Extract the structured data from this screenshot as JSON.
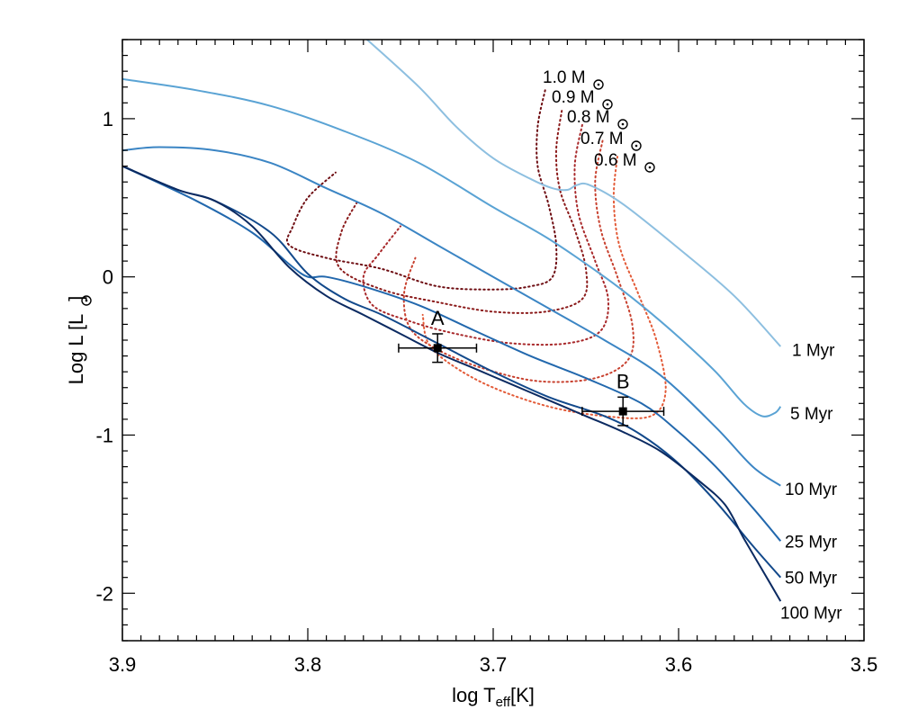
{
  "chart_data": {
    "type": "line",
    "title": "",
    "xlabel": {
      "main": "log T",
      "sub": "eff",
      "suffix": "[K]"
    },
    "ylabel": {
      "main": "Log L [L",
      "suffix": "]",
      "symbol": "sun"
    },
    "xlim": [
      3.9,
      3.5
    ],
    "ylim": [
      -2.3,
      1.5
    ],
    "xticks": [
      {
        "value": 3.9,
        "label": "3.9"
      },
      {
        "value": 3.8,
        "label": "3.8"
      },
      {
        "value": 3.7,
        "label": "3.7"
      },
      {
        "value": 3.6,
        "label": "3.6"
      },
      {
        "value": 3.5,
        "label": "3.5"
      }
    ],
    "yticks": [
      {
        "value": 1,
        "label": "1"
      },
      {
        "value": 0,
        "label": "0"
      },
      {
        "value": -1,
        "label": "-1"
      },
      {
        "value": -2,
        "label": "-2"
      }
    ],
    "isochrones": [
      {
        "name": "1 Myr",
        "color": "#8dbfe0",
        "label": "1 Myr",
        "x": [
          3.768,
          3.74,
          3.72,
          3.7,
          3.68,
          3.668,
          3.66,
          3.655,
          3.648,
          3.63,
          3.6,
          3.57,
          3.545
        ],
        "y": [
          1.5,
          1.2,
          0.95,
          0.75,
          0.62,
          0.56,
          0.55,
          0.58,
          0.58,
          0.46,
          0.18,
          -0.12,
          -0.44
        ]
      },
      {
        "name": "5 Myr",
        "color": "#5aa3d4",
        "label": "5 Myr",
        "x": [
          3.9,
          3.86,
          3.82,
          3.78,
          3.74,
          3.7,
          3.67,
          3.64,
          3.62,
          3.6,
          3.58,
          3.565,
          3.555,
          3.548,
          3.545
        ],
        "y": [
          1.25,
          1.18,
          1.08,
          0.92,
          0.72,
          0.44,
          0.24,
          0.0,
          -0.18,
          -0.38,
          -0.6,
          -0.8,
          -0.88,
          -0.86,
          -0.82
        ]
      },
      {
        "name": "10 Myr",
        "color": "#3b85c4",
        "label": "10 Myr",
        "x": [
          3.9,
          3.88,
          3.85,
          3.82,
          3.79,
          3.76,
          3.73,
          3.7,
          3.67,
          3.64,
          3.61,
          3.58,
          3.56,
          3.545
        ],
        "y": [
          0.8,
          0.82,
          0.8,
          0.72,
          0.56,
          0.4,
          0.2,
          0.0,
          -0.2,
          -0.4,
          -0.62,
          -0.95,
          -1.2,
          -1.32
        ]
      },
      {
        "name": "25 Myr",
        "color": "#2268ad",
        "label": "25 Myr",
        "x": [
          3.9,
          3.86,
          3.83,
          3.81,
          3.8,
          3.79,
          3.77,
          3.74,
          3.71,
          3.68,
          3.65,
          3.62,
          3.6,
          3.58,
          3.56,
          3.545
        ],
        "y": [
          0.7,
          0.48,
          0.28,
          0.08,
          0.0,
          0.0,
          -0.06,
          -0.18,
          -0.34,
          -0.5,
          -0.64,
          -0.8,
          -0.98,
          -1.2,
          -1.46,
          -1.67
        ]
      },
      {
        "name": "50 Myr",
        "color": "#12498b",
        "label": "50 Myr",
        "x": [
          3.9,
          3.87,
          3.85,
          3.82,
          3.8,
          3.78,
          3.76,
          3.73,
          3.7,
          3.67,
          3.64,
          3.62,
          3.6,
          3.58,
          3.56,
          3.545
        ],
        "y": [
          0.7,
          0.55,
          0.48,
          0.28,
          0.02,
          -0.14,
          -0.24,
          -0.42,
          -0.6,
          -0.76,
          -0.88,
          -1.0,
          -1.18,
          -1.42,
          -1.7,
          -1.9
        ]
      },
      {
        "name": "100 Myr",
        "color": "#0b2a61",
        "label": "100 Myr",
        "x": [
          3.9,
          3.87,
          3.85,
          3.83,
          3.81,
          3.79,
          3.77,
          3.75,
          3.73,
          3.71,
          3.69,
          3.67,
          3.65,
          3.63,
          3.61,
          3.59,
          3.575,
          3.565,
          3.555,
          3.545
        ],
        "y": [
          0.7,
          0.55,
          0.48,
          0.32,
          0.06,
          -0.12,
          -0.24,
          -0.36,
          -0.48,
          -0.58,
          -0.68,
          -0.78,
          -0.88,
          -0.98,
          -1.1,
          -1.28,
          -1.44,
          -1.65,
          -1.85,
          -2.05
        ]
      }
    ],
    "tracks": [
      {
        "name": "1.0 Msun",
        "mass": "1.0",
        "color": "#6e0d12",
        "x": [
          3.672,
          3.676,
          3.676,
          3.67,
          3.666,
          3.668,
          3.68,
          3.7,
          3.73,
          3.76,
          3.79,
          3.81,
          3.808,
          3.8,
          3.785
        ],
        "y": [
          1.18,
          0.95,
          0.7,
          0.45,
          0.2,
          0.0,
          -0.06,
          -0.08,
          -0.06,
          0.05,
          0.12,
          0.2,
          0.32,
          0.5,
          0.66
        ]
      },
      {
        "name": "0.9 Msun",
        "mass": "0.9",
        "color": "#8b1a1a",
        "x": [
          3.663,
          3.666,
          3.664,
          3.656,
          3.65,
          3.652,
          3.672,
          3.7,
          3.73,
          3.76,
          3.783,
          3.782,
          3.773
        ],
        "y": [
          1.05,
          0.8,
          0.55,
          0.3,
          0.05,
          -0.14,
          -0.22,
          -0.22,
          -0.16,
          -0.08,
          0.06,
          0.28,
          0.48
        ]
      },
      {
        "name": "0.8 Msun",
        "mass": "0.8",
        "color": "#a8282a",
        "x": [
          3.652,
          3.656,
          3.654,
          3.645,
          3.638,
          3.642,
          3.66,
          3.69,
          3.72,
          3.745,
          3.765,
          3.77,
          3.762,
          3.75
        ],
        "y": [
          0.96,
          0.7,
          0.4,
          0.1,
          -0.14,
          -0.34,
          -0.42,
          -0.42,
          -0.36,
          -0.28,
          -0.18,
          0.0,
          0.14,
          0.32
        ]
      },
      {
        "name": "0.7 Msun",
        "mass": "0.7",
        "color": "#c8402e",
        "x": [
          3.641,
          3.645,
          3.642,
          3.633,
          3.625,
          3.627,
          3.645,
          3.675,
          3.705,
          3.73,
          3.745,
          3.748,
          3.742
        ],
        "y": [
          0.86,
          0.6,
          0.3,
          0.0,
          -0.3,
          -0.52,
          -0.64,
          -0.66,
          -0.58,
          -0.46,
          -0.32,
          -0.1,
          0.12
        ]
      },
      {
        "name": "0.6 Msun",
        "mass": "0.6",
        "color": "#e35b38",
        "x": [
          3.633,
          3.635,
          3.632,
          3.622,
          3.612,
          3.607,
          3.615,
          3.64,
          3.67,
          3.7,
          3.722,
          3.735,
          3.738
        ],
        "y": [
          0.76,
          0.5,
          0.2,
          -0.1,
          -0.4,
          -0.72,
          -0.88,
          -0.88,
          -0.82,
          -0.7,
          -0.56,
          -0.42,
          -0.24
        ]
      }
    ],
    "track_label_prefix": "M",
    "points": [
      {
        "label": "A",
        "x": 3.73,
        "y": -0.45,
        "xerr": 0.021,
        "yerr_low": 0.09,
        "yerr_high": 0.09
      },
      {
        "label": "B",
        "x": 3.63,
        "y": -0.85,
        "xerr": 0.022,
        "yerr_low": 0.09,
        "yerr_high": 0.09
      }
    ]
  }
}
